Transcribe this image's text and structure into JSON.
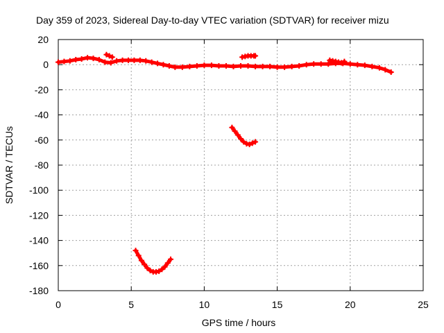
{
  "chart_data": {
    "type": "scatter",
    "title": "Day 359 of 2023, Sidereal Day-to-day VTEC variation (SDTVAR) for receiver mizu",
    "xlabel": "GPS time / hours",
    "ylabel": "SDTVAR / TECUs",
    "xlim": [
      0,
      25
    ],
    "ylim": [
      -180,
      20
    ],
    "xticks": [
      0,
      5,
      10,
      15,
      20,
      25
    ],
    "yticks": [
      20,
      0,
      -20,
      -40,
      -60,
      -80,
      -100,
      -120,
      -140,
      -160,
      -180
    ],
    "grid": true,
    "marker": "plus",
    "series": [
      {
        "name": "main-trace",
        "color": "#ff0000",
        "x": [
          0.0,
          0.4,
          0.8,
          1.2,
          1.6,
          2.0,
          2.4,
          2.8,
          3.2,
          3.6,
          4.0,
          4.4,
          4.8,
          5.2,
          5.6,
          6.0,
          6.4,
          6.8,
          7.2,
          7.6,
          8.0,
          8.5,
          9.0,
          9.5,
          10.0,
          10.5,
          11.0,
          11.5,
          12.0,
          12.5,
          13.0,
          13.5,
          14.0,
          14.5,
          15.0,
          15.5,
          16.0,
          16.5,
          17.0,
          17.5,
          18.0,
          18.5,
          19.0,
          19.5,
          20.0,
          20.5,
          21.0,
          21.5,
          22.0,
          22.4,
          22.8
        ],
        "y": [
          2,
          2.5,
          3,
          4,
          4.5,
          5.5,
          5,
          4,
          2,
          1.5,
          3,
          3.5,
          3.5,
          3.5,
          3.5,
          3,
          2,
          1,
          0,
          -1,
          -2,
          -2,
          -1.5,
          -1,
          -0.5,
          -0.5,
          -1,
          -1,
          -1.5,
          -1,
          -1,
          -1.5,
          -1.5,
          -1.5,
          -2,
          -2,
          -1.5,
          -1,
          0,
          0.5,
          0.5,
          0.5,
          1,
          1,
          0.5,
          0,
          -0.5,
          -1.5,
          -2.5,
          -4,
          -6
        ]
      },
      {
        "name": "short-upper-segment",
        "color": "#ff0000",
        "x": [
          3.3,
          3.5,
          3.7
        ],
        "y": [
          8,
          7,
          6
        ]
      },
      {
        "name": "upper-right-segment",
        "color": "#ff0000",
        "x": [
          12.6,
          12.8,
          13.0,
          13.2,
          13.4,
          13.5
        ],
        "y": [
          6,
          6.5,
          7,
          7,
          7,
          7
        ]
      },
      {
        "name": "dense-block-near-19h",
        "color": "#ff0000",
        "x": [
          18.6,
          18.8,
          19.0,
          19.2,
          19.4,
          19.6
        ],
        "y": [
          3.5,
          3,
          2.5,
          2,
          1.5,
          2.5
        ]
      },
      {
        "name": "mid-arc",
        "color": "#ff0000",
        "x": [
          11.9,
          12.1,
          12.3,
          12.5,
          12.7,
          12.9,
          13.1,
          13.3,
          13.5
        ],
        "y": [
          -50,
          -53,
          -56,
          -59,
          -61.5,
          -63,
          -63.5,
          -62.5,
          -61.5
        ]
      },
      {
        "name": "lower-arc",
        "color": "#ff0000",
        "x": [
          5.3,
          5.5,
          5.7,
          5.9,
          6.1,
          6.3,
          6.5,
          6.7,
          6.9,
          7.1,
          7.3,
          7.5,
          7.7
        ],
        "y": [
          -148,
          -152,
          -156,
          -159,
          -162,
          -164,
          -165,
          -165,
          -164.5,
          -163,
          -161,
          -158,
          -155
        ]
      }
    ]
  }
}
